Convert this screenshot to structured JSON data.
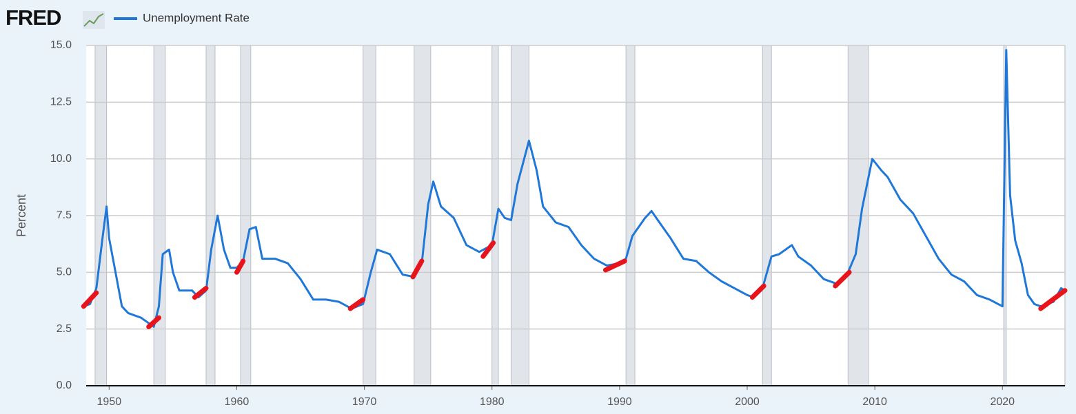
{
  "chart_data": {
    "type": "line",
    "logo": "FRED",
    "ylabel": "Percent",
    "series": [
      {
        "name": "Unemployment Rate",
        "color": "#1f78d8",
        "x": [
          1948.0,
          1948.5,
          1949.0,
          1949.5,
          1949.8,
          1950.0,
          1950.5,
          1951.0,
          1951.5,
          1952.0,
          1952.5,
          1953.0,
          1953.5,
          1953.9,
          1954.2,
          1954.7,
          1955.0,
          1955.5,
          1956.0,
          1956.5,
          1957.0,
          1957.6,
          1958.0,
          1958.5,
          1959.0,
          1959.5,
          1960.0,
          1960.5,
          1961.0,
          1961.5,
          1962.0,
          1963.0,
          1964.0,
          1965.0,
          1966.0,
          1967.0,
          1968.0,
          1969.0,
          1969.9,
          1970.5,
          1971.0,
          1972.0,
          1973.0,
          1973.9,
          1974.5,
          1975.0,
          1975.4,
          1976.0,
          1977.0,
          1978.0,
          1979.0,
          1980.0,
          1980.5,
          1981.0,
          1981.5,
          1982.0,
          1982.9,
          1983.5,
          1984.0,
          1985.0,
          1986.0,
          1987.0,
          1988.0,
          1989.0,
          1990.0,
          1990.5,
          1991.0,
          1992.0,
          1992.5,
          1993.0,
          1994.0,
          1995.0,
          1996.0,
          1997.0,
          1998.0,
          1999.0,
          2000.0,
          2000.5,
          2001.2,
          2001.9,
          2002.5,
          2003.5,
          2004.0,
          2005.0,
          2006.0,
          2007.0,
          2007.9,
          2008.5,
          2009.0,
          2009.8,
          2010.5,
          2011.0,
          2012.0,
          2013.0,
          2014.0,
          2015.0,
          2016.0,
          2017.0,
          2018.0,
          2019.0,
          2020.0,
          2020.3,
          2020.6,
          2021.0,
          2021.5,
          2022.0,
          2022.5,
          2023.0,
          2023.5,
          2024.0,
          2024.6,
          2024.9
        ],
        "values": [
          3.5,
          3.6,
          4.3,
          6.6,
          7.9,
          6.5,
          5.0,
          3.5,
          3.2,
          3.1,
          3.0,
          2.8,
          2.6,
          3.5,
          5.8,
          6.0,
          5.0,
          4.2,
          4.2,
          4.2,
          3.9,
          4.2,
          6.0,
          7.5,
          6.0,
          5.2,
          5.2,
          5.5,
          6.9,
          7.0,
          5.6,
          5.6,
          5.4,
          4.7,
          3.8,
          3.8,
          3.7,
          3.4,
          3.6,
          5.0,
          6.0,
          5.8,
          4.9,
          4.8,
          5.4,
          8.0,
          9.0,
          7.9,
          7.4,
          6.2,
          5.9,
          6.2,
          7.8,
          7.4,
          7.3,
          8.9,
          10.8,
          9.5,
          7.9,
          7.2,
          7.0,
          6.2,
          5.6,
          5.3,
          5.4,
          5.6,
          6.6,
          7.4,
          7.7,
          7.3,
          6.5,
          5.6,
          5.5,
          5.0,
          4.6,
          4.3,
          4.0,
          3.9,
          4.3,
          5.7,
          5.8,
          6.2,
          5.7,
          5.3,
          4.7,
          4.5,
          5.0,
          5.8,
          7.8,
          10.0,
          9.5,
          9.2,
          8.2,
          7.6,
          6.6,
          5.6,
          4.9,
          4.6,
          4.0,
          3.8,
          3.5,
          14.8,
          8.4,
          6.4,
          5.4,
          4.0,
          3.6,
          3.5,
          3.6,
          3.7,
          4.3,
          4.2
        ]
      }
    ],
    "highlight_color": "#e8141c",
    "highlights": [
      {
        "x": [
          1948.0,
          1949.0
        ],
        "values": [
          3.5,
          4.1
        ]
      },
      {
        "x": [
          1953.1,
          1953.9
        ],
        "values": [
          2.6,
          3.0
        ]
      },
      {
        "x": [
          1956.7,
          1957.6
        ],
        "values": [
          3.9,
          4.3
        ]
      },
      {
        "x": [
          1960.0,
          1960.5
        ],
        "values": [
          5.0,
          5.5
        ]
      },
      {
        "x": [
          1968.9,
          1969.9
        ],
        "values": [
          3.4,
          3.8
        ]
      },
      {
        "x": [
          1973.8,
          1974.5
        ],
        "values": [
          4.8,
          5.5
        ]
      },
      {
        "x": [
          1979.3,
          1980.1
        ],
        "values": [
          5.7,
          6.3
        ]
      },
      {
        "x": [
          1988.9,
          1990.4
        ],
        "values": [
          5.1,
          5.5
        ]
      },
      {
        "x": [
          2000.4,
          2001.3
        ],
        "values": [
          3.9,
          4.4
        ]
      },
      {
        "x": [
          2006.9,
          2008.0
        ],
        "values": [
          4.4,
          5.0
        ]
      },
      {
        "x": [
          2023.0,
          2024.9
        ],
        "values": [
          3.4,
          4.2
        ]
      }
    ],
    "recessions": [
      [
        1948.9,
        1949.8
      ],
      [
        1953.5,
        1954.4
      ],
      [
        1957.6,
        1958.3
      ],
      [
        1960.3,
        1961.1
      ],
      [
        1969.9,
        1970.9
      ],
      [
        1973.9,
        1975.2
      ],
      [
        1980.0,
        1980.5
      ],
      [
        1981.5,
        1982.9
      ],
      [
        1990.5,
        1991.2
      ],
      [
        2001.2,
        2001.9
      ],
      [
        2007.9,
        2009.5
      ],
      [
        2020.1,
        2020.3
      ]
    ],
    "xlim": [
      1948.2,
      2024.9
    ],
    "xticks": [
      1950,
      1960,
      1970,
      1980,
      1990,
      2000,
      2010,
      2020
    ],
    "ylim": [
      0,
      15
    ],
    "yticks": [
      {
        "value": 0,
        "label": "0.0"
      },
      2.5,
      {
        "value": 5,
        "label": "5.0"
      },
      7.5,
      {
        "value": 10,
        "label": "10.0"
      },
      12.5,
      {
        "value": 15,
        "label": "15.0"
      }
    ],
    "grid": true
  }
}
